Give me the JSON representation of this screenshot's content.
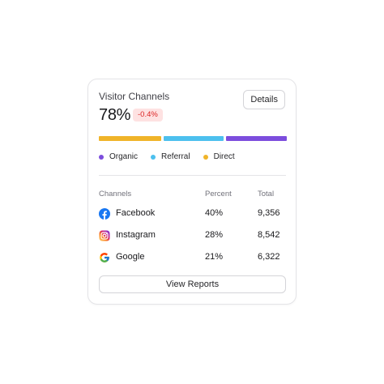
{
  "card": {
    "title": "Visitor Channels",
    "value": "78%",
    "change": "-0.4%",
    "details_label": "Details",
    "view_reports_label": "View Reports"
  },
  "progress_bar": {
    "segments": [
      {
        "name": "Direct",
        "color": "#f0b429",
        "fraction": 0.34
      },
      {
        "name": "Referral",
        "color": "#4cc0ee",
        "fraction": 0.33
      },
      {
        "name": "Organic",
        "color": "#7c4ddd",
        "fraction": 0.33
      }
    ]
  },
  "legend": [
    {
      "label": "Organic",
      "color": "#7c4ddd"
    },
    {
      "label": "Referral",
      "color": "#4cc0ee"
    },
    {
      "label": "Direct",
      "color": "#f0b429"
    }
  ],
  "table": {
    "headers": [
      "Channels",
      "Percent",
      "Total"
    ],
    "rows": [
      {
        "icon": "facebook-icon",
        "channel": "Facebook",
        "percent": "40%",
        "total": "9,356"
      },
      {
        "icon": "instagram-icon",
        "channel": "Instagram",
        "percent": "28%",
        "total": "8,542"
      },
      {
        "icon": "google-icon",
        "channel": "Google",
        "percent": "21%",
        "total": "6,322"
      }
    ]
  },
  "colors": {
    "badge_bg": "#fee2e2",
    "badge_text": "#dc2626",
    "facebook": "#1877f2"
  }
}
